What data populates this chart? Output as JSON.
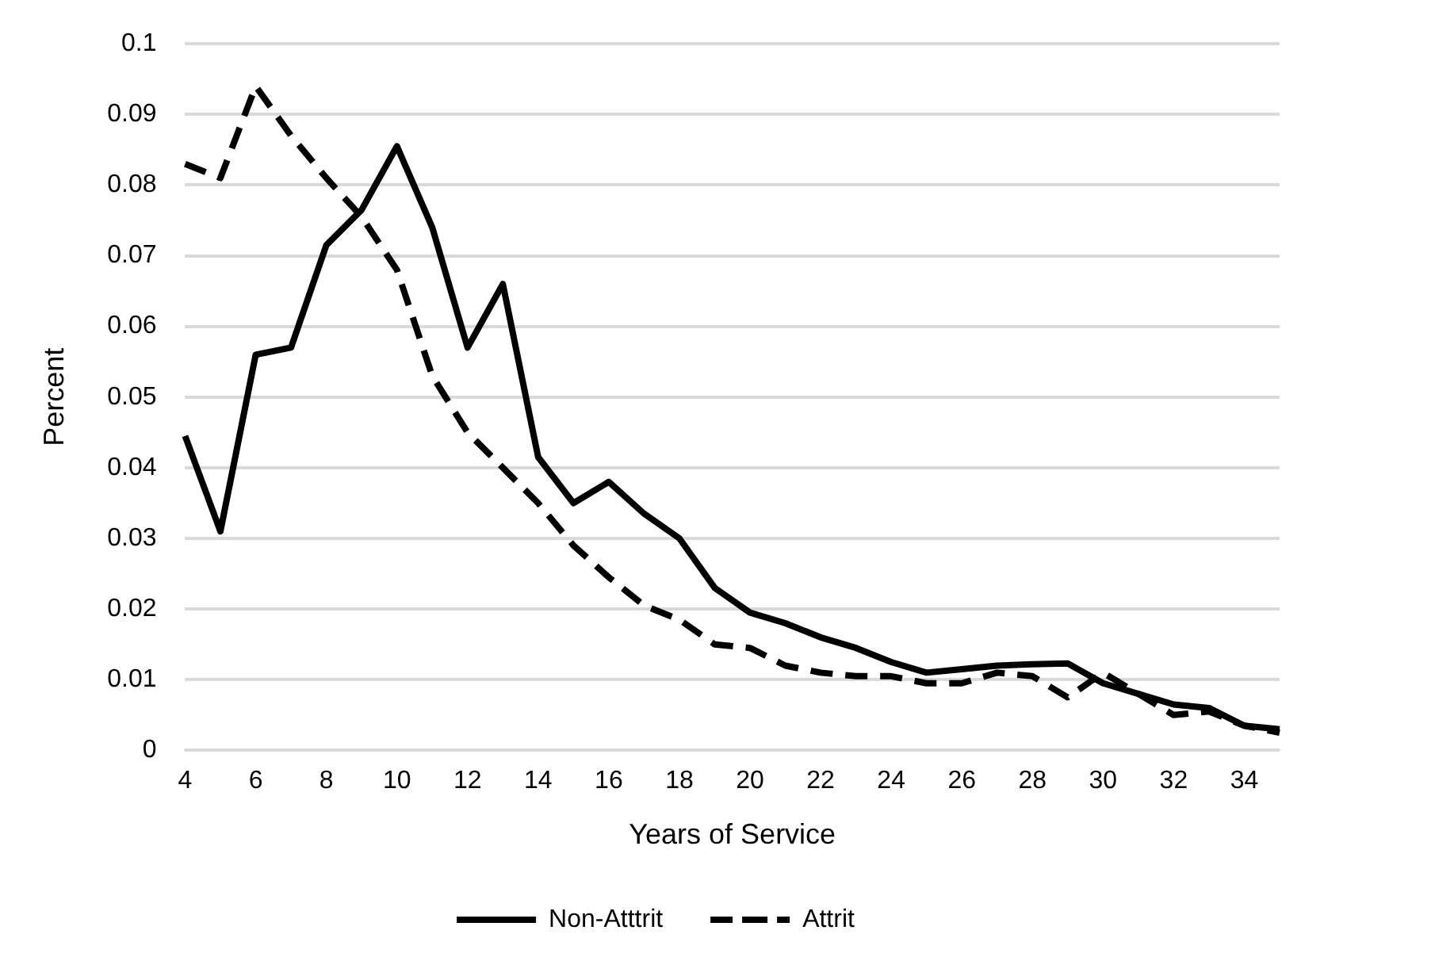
{
  "chart_data": {
    "type": "line",
    "xlabel": "Years of Service",
    "ylabel": "Percent",
    "categories": [
      "4",
      null,
      "6",
      null,
      "8",
      null,
      "10",
      null,
      "12",
      null,
      "14",
      null,
      "16",
      null,
      "18",
      null,
      "20",
      null,
      "22",
      null,
      "24",
      null,
      "26",
      null,
      "28",
      null,
      "30",
      null,
      "32",
      null,
      "34",
      null
    ],
    "series": [
      {
        "name": "Non-Atttrit",
        "color": "#000000",
        "line_style": "solid",
        "values": [
          0.0445,
          0.031,
          0.056,
          0.057,
          0.0715,
          0.0765,
          0.0855,
          0.074,
          0.057,
          0.066,
          0.0415,
          0.035,
          0.038,
          0.0335,
          0.03,
          0.023,
          0.0195,
          0.018,
          0.016,
          0.0145,
          0.0125,
          0.011,
          0.0115,
          0.012,
          0.0122,
          0.0123,
          0.0095,
          0.008,
          0.0065,
          0.006,
          0.0035,
          0.003
        ]
      },
      {
        "name": "Attrit",
        "color": "#000000",
        "line_style": "dashed",
        "values": [
          0.083,
          0.081,
          0.094,
          0.087,
          0.081,
          0.0755,
          0.068,
          0.053,
          0.045,
          0.04,
          0.035,
          0.029,
          0.0245,
          0.0205,
          0.0185,
          0.015,
          0.0145,
          0.012,
          0.011,
          0.0105,
          0.0105,
          0.0095,
          0.0095,
          0.011,
          0.0105,
          0.0075,
          0.011,
          0.008,
          0.005,
          0.0055,
          0.0035,
          0.0025
        ]
      }
    ],
    "ylim": [
      0,
      0.1
    ],
    "yticks": [
      0,
      0.01,
      0.02,
      0.03,
      0.04,
      0.05,
      0.06,
      0.07,
      0.08,
      0.09,
      0.1
    ],
    "grid": "y",
    "legend": "bottom",
    "marker": "none"
  }
}
